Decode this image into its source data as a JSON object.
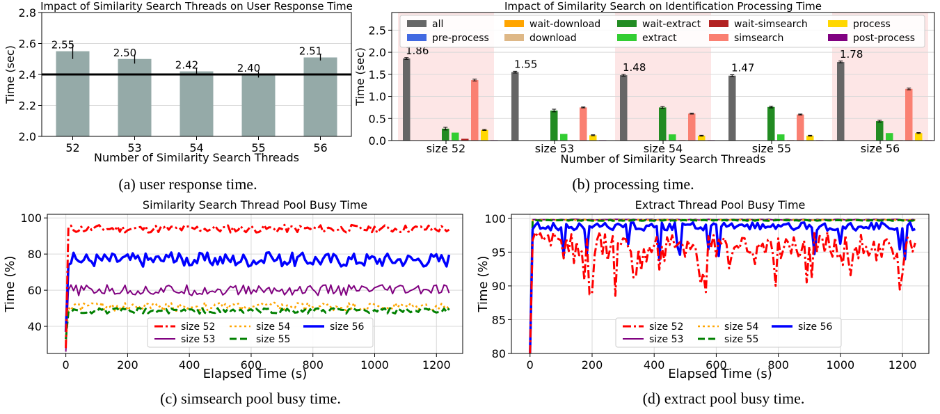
{
  "captions": {
    "a": "(a) user response time.",
    "b": "(b) processing time.",
    "c": "(c) simsearch pool busy time.",
    "d": "(d) extract pool busy time."
  },
  "chart_data": [
    {
      "id": "a",
      "type": "bar",
      "title": "Impact of Similarity Search Threads on User Response Time",
      "xlabel": "Number of Similarity Search Threads",
      "ylabel": "Time (sec)",
      "categories": [
        "52",
        "53",
        "54",
        "55",
        "56"
      ],
      "values": [
        2.55,
        2.5,
        2.42,
        2.4,
        2.51
      ],
      "value_labels": [
        "2.55",
        "2.50",
        "2.42",
        "2.40",
        "2.51"
      ],
      "errors": [
        0.05,
        0.03,
        0.02,
        0.02,
        0.02
      ],
      "ylim": [
        2.0,
        2.8
      ],
      "yticks": [
        "2.0",
        "2.2",
        "2.4",
        "2.6",
        "2.8"
      ],
      "reference_line": 2.4,
      "bar_color": "#95aaa8",
      "grid": true
    },
    {
      "id": "b",
      "type": "bar",
      "title": "Impact of Similarity Search on Identification Processing Time",
      "xlabel": "Number of Similarity Search Threads",
      "ylabel": "Time (sec)",
      "categories": [
        "size 52",
        "size 53",
        "size 54",
        "size 55",
        "size 56"
      ],
      "ylim": [
        0,
        2.9
      ],
      "yticks": [
        "0.0",
        "0.5",
        "1.0",
        "1.5",
        "2.0",
        "2.5"
      ],
      "grid": true,
      "legend_position": "top",
      "highlight_color": "#fde6e6",
      "highlighted_groups": [
        0,
        2,
        4
      ],
      "all_value_labels": [
        "1.86",
        "1.55",
        "1.48",
        "1.47",
        "1.78"
      ],
      "series": [
        {
          "name": "all",
          "color": "#666666",
          "values": [
            1.86,
            1.55,
            1.48,
            1.47,
            1.78
          ],
          "errors": [
            0.02,
            0.02,
            0.02,
            0.02,
            0.02
          ]
        },
        {
          "name": "pre-process",
          "color": "#4169e1",
          "values": [
            0,
            0,
            0,
            0,
            0
          ],
          "errors": [
            0,
            0,
            0,
            0,
            0
          ]
        },
        {
          "name": "wait-download",
          "color": "#ffa500",
          "values": [
            0,
            0,
            0,
            0,
            0
          ],
          "errors": [
            0,
            0,
            0,
            0,
            0
          ]
        },
        {
          "name": "download",
          "color": "#deb887",
          "values": [
            0,
            0,
            0,
            0,
            0
          ],
          "errors": [
            0,
            0,
            0,
            0,
            0
          ]
        },
        {
          "name": "wait-extract",
          "color": "#228b22",
          "values": [
            0.27,
            0.68,
            0.75,
            0.76,
            0.44
          ],
          "errors": [
            0.03,
            0.03,
            0.02,
            0.02,
            0.02
          ]
        },
        {
          "name": "extract",
          "color": "#32cd32",
          "values": [
            0.18,
            0.15,
            0.14,
            0.14,
            0.17
          ],
          "errors": [
            0,
            0,
            0,
            0,
            0
          ]
        },
        {
          "name": "wait-simsearch",
          "color": "#b22222",
          "values": [
            0.04,
            0.01,
            0.01,
            0.01,
            0.01
          ],
          "errors": [
            0,
            0,
            0,
            0,
            0
          ]
        },
        {
          "name": "simsearch",
          "color": "#fa8072",
          "values": [
            1.37,
            0.75,
            0.61,
            0.59,
            1.17
          ],
          "errors": [
            0.02,
            0.01,
            0.01,
            0.01,
            0.02
          ]
        },
        {
          "name": "process",
          "color": "#ffd700",
          "values": [
            0.24,
            0.12,
            0.11,
            0.11,
            0.17
          ],
          "errors": [
            0.01,
            0.01,
            0.01,
            0.01,
            0.01
          ]
        },
        {
          "name": "post-process",
          "color": "#800080",
          "values": [
            0.01,
            0.01,
            0.01,
            0.01,
            0.01
          ],
          "errors": [
            0,
            0,
            0,
            0,
            0
          ]
        }
      ]
    },
    {
      "id": "c",
      "type": "line",
      "title": "Similarity Search Thread Pool Busy Time",
      "xlabel": "Elapsed Time (s)",
      "ylabel": "Time (%)",
      "xlim": [
        -60,
        1285
      ],
      "ylim": [
        25,
        102
      ],
      "xticks": [
        "0",
        "200",
        "400",
        "600",
        "800",
        "1000",
        "1200"
      ],
      "yticks": [
        "40",
        "60",
        "80",
        "100"
      ],
      "grid": true,
      "legend_position": "lower-center",
      "sample_count": 150,
      "x_step": 8.33,
      "series": [
        {
          "name": "size 52",
          "color": "#ff0000",
          "dash": "12,4,3,4",
          "width": 3,
          "start": 28,
          "mean": 94.0,
          "amplitude": 2.2
        },
        {
          "name": "size 53",
          "color": "#800080",
          "dash": "",
          "width": 2,
          "start": 26,
          "mean": 60.0,
          "amplitude": 3.0
        },
        {
          "name": "size 54",
          "color": "#ffa500",
          "dash": "3,4",
          "width": 2.5,
          "start": 29,
          "mean": 51.0,
          "amplitude": 2.5
        },
        {
          "name": "size 55",
          "color": "#008000",
          "dash": "10,5",
          "width": 3,
          "start": 33,
          "mean": 48.5,
          "amplitude": 1.6
        },
        {
          "name": "size 56",
          "color": "#0000ff",
          "dash": "",
          "width": 3.5,
          "start": 37,
          "mean": 77.0,
          "amplitude": 4.0
        }
      ]
    },
    {
      "id": "d",
      "type": "line",
      "title": "Extract Thread Pool Busy Time",
      "xlabel": "Elapsed Time (s)",
      "ylabel": "Time (%)",
      "xlim": [
        -60,
        1285
      ],
      "ylim": [
        80,
        100.6
      ],
      "xticks": [
        "0",
        "200",
        "400",
        "600",
        "800",
        "1000",
        "1200"
      ],
      "yticks": [
        "80",
        "85",
        "90",
        "95",
        "100"
      ],
      "grid": true,
      "legend_position": "lower-center",
      "sample_count": 150,
      "x_step": 8.33,
      "series": [
        {
          "name": "size 52",
          "color": "#ff0000",
          "dash": "12,4,3,4",
          "width": 3,
          "start": 80,
          "mean": 96.0,
          "amplitude": 2.0
        },
        {
          "name": "size 53",
          "color": "#800080",
          "dash": "",
          "width": 2,
          "start": 80,
          "mean": 99.8,
          "amplitude": 0.05
        },
        {
          "name": "size 54",
          "color": "#ffa500",
          "dash": "3,4",
          "width": 2.5,
          "start": 80,
          "mean": 99.75,
          "amplitude": 0.05
        },
        {
          "name": "size 55",
          "color": "#008000",
          "dash": "10,5",
          "width": 3,
          "start": 80,
          "mean": 99.7,
          "amplitude": 0.06
        },
        {
          "name": "size 56",
          "color": "#0000ff",
          "dash": "",
          "width": 3.5,
          "start": 80,
          "mean": 98.8,
          "amplitude": 0.6
        }
      ]
    }
  ]
}
